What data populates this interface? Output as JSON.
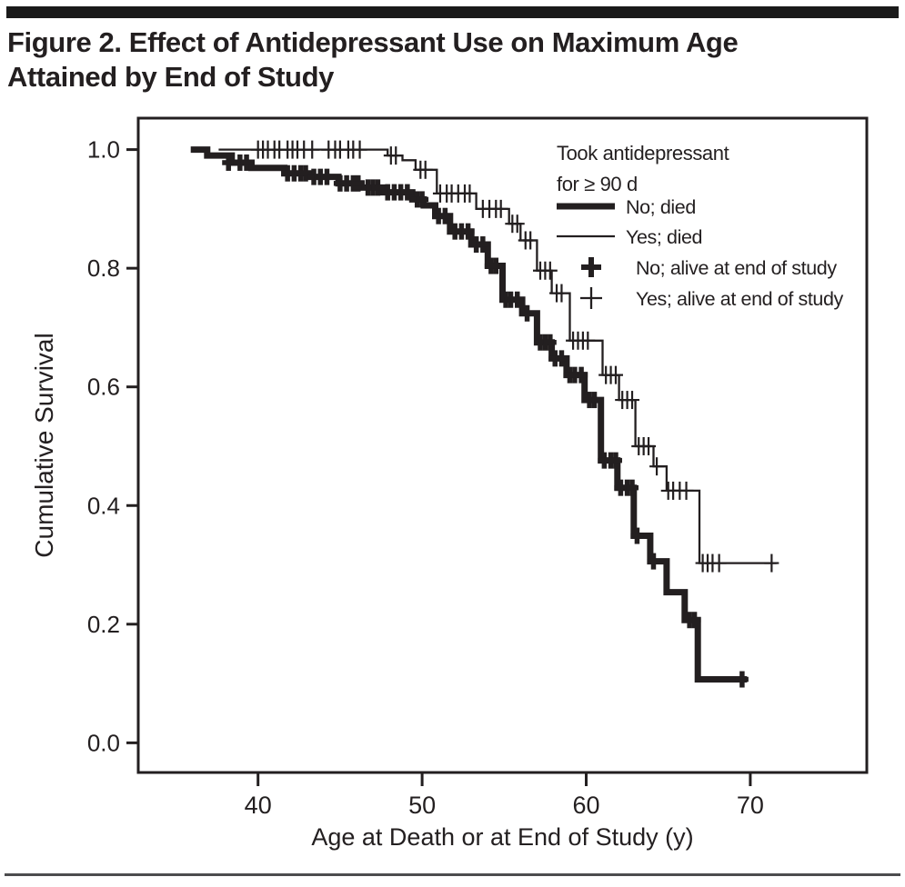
{
  "figure": {
    "title_line1": "Figure 2. Effect of Antidepressant Use on Maximum Age",
    "title_line2": "Attained by End of Study"
  },
  "colors": {
    "ink": "#231f20",
    "background": "#ffffff",
    "bottom_rule": "#4c4c4e"
  },
  "chart_data": {
    "type": "line",
    "subtype": "kaplan-meier-step-survival",
    "xlabel": "Age at Death or at End of Study (y)",
    "ylabel": "Cumulative Survival",
    "xlim": [
      32.7,
      77.1
    ],
    "ylim": [
      -0.05,
      1.053
    ],
    "grid": false,
    "x_ticks": [
      {
        "value": 40,
        "label": "40"
      },
      {
        "value": 50,
        "label": "50"
      },
      {
        "value": 60,
        "label": "60"
      },
      {
        "value": 70,
        "label": "70"
      }
    ],
    "y_ticks": [
      {
        "value": 0.0,
        "label": "0.0"
      },
      {
        "value": 0.2,
        "label": "0.2"
      },
      {
        "value": 0.4,
        "label": "0.4"
      },
      {
        "value": 0.6,
        "label": "0.6"
      },
      {
        "value": 0.8,
        "label": "0.8"
      },
      {
        "value": 1.0,
        "label": "1.0"
      }
    ],
    "legend": {
      "position": "top-right-inside",
      "heading_line1": "Took antidepressant",
      "heading_line2": "for ≥ 90 d",
      "entries": [
        {
          "label": "No; died",
          "marker": "thick-line"
        },
        {
          "label": "Yes; died",
          "marker": "thin-line"
        },
        {
          "label": "No; alive at end of study",
          "marker": "thick-plus"
        },
        {
          "label": "Yes; alive at end of study",
          "marker": "thin-plus"
        }
      ]
    },
    "series": [
      {
        "name": "No; died",
        "group": "no-antidepressant",
        "style": "thick",
        "steps": [
          [
            35.9,
            1.0
          ],
          [
            36.9,
            0.99
          ],
          [
            38.4,
            0.978
          ],
          [
            39.6,
            0.969
          ],
          [
            41.6,
            0.96
          ],
          [
            43.1,
            0.954
          ],
          [
            44.9,
            0.943
          ],
          [
            46.3,
            0.936
          ],
          [
            47.6,
            0.928
          ],
          [
            49.4,
            0.916
          ],
          [
            50.1,
            0.906
          ],
          [
            50.8,
            0.888
          ],
          [
            51.7,
            0.862
          ],
          [
            53.0,
            0.84
          ],
          [
            54.0,
            0.804
          ],
          [
            54.9,
            0.747
          ],
          [
            56.1,
            0.724
          ],
          [
            57.0,
            0.675
          ],
          [
            57.9,
            0.648
          ],
          [
            58.8,
            0.62
          ],
          [
            59.9,
            0.578
          ],
          [
            60.9,
            0.476
          ],
          [
            61.9,
            0.43
          ],
          [
            62.9,
            0.349
          ],
          [
            63.9,
            0.306
          ],
          [
            64.9,
            0.254
          ],
          [
            66.0,
            0.207
          ],
          [
            66.8,
            0.107
          ],
          [
            69.8,
            0.107
          ]
        ],
        "censors": [
          [
            38.2,
            0.978
          ],
          [
            38.9,
            0.978
          ],
          [
            39.3,
            0.978
          ],
          [
            41.8,
            0.96
          ],
          [
            42.2,
            0.96
          ],
          [
            42.6,
            0.96
          ],
          [
            42.9,
            0.96
          ],
          [
            43.4,
            0.954
          ],
          [
            43.8,
            0.954
          ],
          [
            44.2,
            0.954
          ],
          [
            45.0,
            0.943
          ],
          [
            45.4,
            0.943
          ],
          [
            45.8,
            0.943
          ],
          [
            46.1,
            0.943
          ],
          [
            46.7,
            0.936
          ],
          [
            47.0,
            0.936
          ],
          [
            47.3,
            0.936
          ],
          [
            47.9,
            0.928
          ],
          [
            48.3,
            0.928
          ],
          [
            48.7,
            0.928
          ],
          [
            49.1,
            0.928
          ],
          [
            49.7,
            0.916
          ],
          [
            50.0,
            0.916
          ],
          [
            51.0,
            0.888
          ],
          [
            51.4,
            0.888
          ],
          [
            52.0,
            0.862
          ],
          [
            52.4,
            0.862
          ],
          [
            52.8,
            0.862
          ],
          [
            53.3,
            0.84
          ],
          [
            53.7,
            0.84
          ],
          [
            54.2,
            0.804
          ],
          [
            54.5,
            0.804
          ],
          [
            55.1,
            0.747
          ],
          [
            55.4,
            0.747
          ],
          [
            55.8,
            0.747
          ],
          [
            56.4,
            0.724
          ],
          [
            57.2,
            0.675
          ],
          [
            57.5,
            0.675
          ],
          [
            57.8,
            0.675
          ],
          [
            58.1,
            0.648
          ],
          [
            58.5,
            0.648
          ],
          [
            59.0,
            0.62
          ],
          [
            59.3,
            0.62
          ],
          [
            59.7,
            0.62
          ],
          [
            60.2,
            0.578
          ],
          [
            60.5,
            0.578
          ],
          [
            61.1,
            0.476
          ],
          [
            61.5,
            0.476
          ],
          [
            61.8,
            0.476
          ],
          [
            62.1,
            0.43
          ],
          [
            62.5,
            0.43
          ],
          [
            62.8,
            0.43
          ],
          [
            63.1,
            0.349
          ],
          [
            64.1,
            0.306
          ],
          [
            66.3,
            0.207
          ],
          [
            66.6,
            0.207
          ],
          [
            69.5,
            0.107
          ]
        ]
      },
      {
        "name": "Yes; died",
        "group": "antidepressant-90d",
        "style": "thin",
        "steps": [
          [
            37.6,
            1.0
          ],
          [
            47.9,
            0.99
          ],
          [
            48.8,
            0.982
          ],
          [
            49.6,
            0.966
          ],
          [
            50.9,
            0.926
          ],
          [
            53.3,
            0.9
          ],
          [
            55.3,
            0.875
          ],
          [
            56.0,
            0.847
          ],
          [
            57.0,
            0.796
          ],
          [
            57.9,
            0.758
          ],
          [
            59.0,
            0.678
          ],
          [
            61.0,
            0.62
          ],
          [
            62.0,
            0.578
          ],
          [
            63.0,
            0.5
          ],
          [
            64.1,
            0.466
          ],
          [
            64.9,
            0.425
          ],
          [
            66.9,
            0.303
          ],
          [
            71.6,
            0.303
          ]
        ],
        "censors": [
          [
            40.0,
            1.0
          ],
          [
            40.3,
            1.0
          ],
          [
            40.6,
            1.0
          ],
          [
            41.0,
            1.0
          ],
          [
            41.3,
            1.0
          ],
          [
            41.8,
            1.0
          ],
          [
            42.1,
            1.0
          ],
          [
            42.4,
            1.0
          ],
          [
            42.8,
            1.0
          ],
          [
            43.3,
            1.0
          ],
          [
            44.3,
            1.0
          ],
          [
            44.7,
            1.0
          ],
          [
            45.0,
            1.0
          ],
          [
            45.5,
            1.0
          ],
          [
            45.8,
            1.0
          ],
          [
            46.2,
            1.0
          ],
          [
            48.1,
            0.99
          ],
          [
            48.4,
            0.99
          ],
          [
            49.9,
            0.966
          ],
          [
            50.2,
            0.966
          ],
          [
            51.1,
            0.926
          ],
          [
            51.5,
            0.926
          ],
          [
            51.8,
            0.926
          ],
          [
            52.2,
            0.926
          ],
          [
            52.6,
            0.926
          ],
          [
            52.9,
            0.926
          ],
          [
            53.7,
            0.9
          ],
          [
            54.1,
            0.9
          ],
          [
            54.5,
            0.9
          ],
          [
            54.8,
            0.9
          ],
          [
            55.5,
            0.875
          ],
          [
            55.8,
            0.875
          ],
          [
            56.3,
            0.847
          ],
          [
            56.6,
            0.847
          ],
          [
            57.2,
            0.796
          ],
          [
            57.5,
            0.796
          ],
          [
            57.8,
            0.796
          ],
          [
            58.2,
            0.758
          ],
          [
            58.5,
            0.758
          ],
          [
            59.2,
            0.678
          ],
          [
            59.5,
            0.678
          ],
          [
            59.8,
            0.678
          ],
          [
            60.1,
            0.678
          ],
          [
            61.2,
            0.62
          ],
          [
            61.5,
            0.62
          ],
          [
            61.8,
            0.62
          ],
          [
            62.2,
            0.578
          ],
          [
            62.5,
            0.578
          ],
          [
            62.8,
            0.578
          ],
          [
            63.2,
            0.5
          ],
          [
            63.5,
            0.5
          ],
          [
            63.8,
            0.5
          ],
          [
            64.3,
            0.466
          ],
          [
            65.0,
            0.425
          ],
          [
            65.3,
            0.425
          ],
          [
            65.7,
            0.425
          ],
          [
            66.1,
            0.425
          ],
          [
            67.1,
            0.303
          ],
          [
            67.4,
            0.303
          ],
          [
            67.7,
            0.303
          ],
          [
            68.1,
            0.303
          ],
          [
            71.3,
            0.303
          ]
        ]
      }
    ]
  }
}
